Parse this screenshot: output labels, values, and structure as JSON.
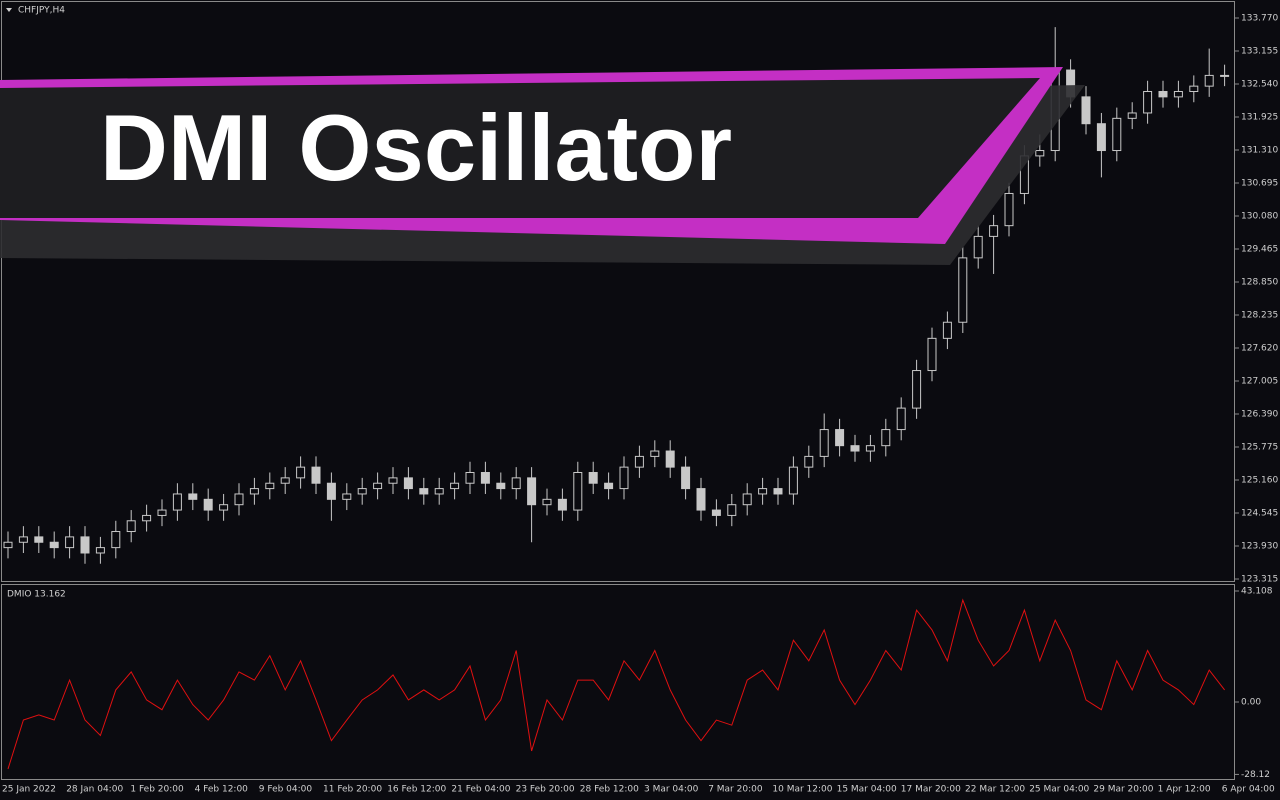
{
  "chart_data": [
    {
      "type": "candlestick",
      "title": "CHFJPY,H4",
      "up_color": "#0b0b10",
      "down_color": "#c8c8c8",
      "wick_color": "#c8c8c8",
      "open": [
        123.9,
        124.0,
        124.1,
        124.0,
        123.9,
        124.1,
        123.8,
        123.9,
        124.2,
        124.4,
        124.5,
        124.6,
        124.9,
        124.8,
        124.6,
        124.7,
        124.9,
        125.0,
        125.1,
        125.2,
        125.4,
        125.1,
        124.8,
        124.9,
        125.0,
        125.1,
        125.2,
        125.0,
        124.9,
        125.0,
        125.1,
        125.3,
        125.1,
        125.0,
        125.2,
        124.7,
        124.8,
        124.6,
        125.3,
        125.1,
        125.0,
        125.4,
        125.6,
        125.7,
        125.4,
        125.0,
        124.6,
        124.5,
        124.7,
        124.9,
        125.0,
        124.9,
        125.4,
        125.6,
        126.1,
        125.8,
        125.7,
        125.8,
        126.1,
        126.5,
        127.2,
        127.8,
        128.1,
        129.3,
        129.7,
        129.9,
        130.5,
        131.2,
        131.3,
        132.8,
        132.3,
        131.8,
        131.3,
        131.9,
        132.0,
        132.4,
        132.3,
        132.4,
        132.5,
        132.7
      ],
      "high": [
        124.2,
        124.3,
        124.3,
        124.2,
        124.3,
        124.3,
        124.1,
        124.4,
        124.6,
        124.7,
        124.8,
        125.1,
        125.1,
        125.0,
        124.9,
        125.1,
        125.2,
        125.3,
        125.4,
        125.6,
        125.6,
        125.3,
        125.1,
        125.2,
        125.3,
        125.4,
        125.4,
        125.2,
        125.2,
        125.3,
        125.5,
        125.5,
        125.3,
        125.4,
        125.4,
        125.0,
        125.0,
        125.5,
        125.5,
        125.3,
        125.6,
        125.8,
        125.9,
        125.9,
        125.6,
        125.2,
        124.8,
        124.9,
        125.1,
        125.2,
        125.2,
        125.6,
        125.8,
        126.4,
        126.3,
        126.0,
        126.0,
        126.3,
        126.7,
        127.4,
        128.0,
        128.3,
        129.5,
        129.9,
        130.1,
        130.7,
        131.4,
        131.6,
        133.6,
        133.0,
        132.5,
        132.0,
        132.1,
        132.2,
        132.6,
        132.6,
        132.6,
        132.7,
        133.2,
        132.9
      ],
      "low": [
        123.7,
        123.8,
        123.8,
        123.7,
        123.7,
        123.6,
        123.6,
        123.7,
        124.0,
        124.2,
        124.3,
        124.4,
        124.6,
        124.4,
        124.4,
        124.5,
        124.7,
        124.8,
        124.9,
        125.0,
        124.9,
        124.4,
        124.6,
        124.7,
        124.8,
        124.9,
        124.8,
        124.7,
        124.7,
        124.8,
        124.9,
        124.9,
        124.8,
        124.8,
        124.0,
        124.5,
        124.4,
        124.4,
        124.9,
        124.8,
        124.8,
        125.2,
        125.4,
        125.2,
        124.8,
        124.4,
        124.3,
        124.3,
        124.5,
        124.7,
        124.7,
        124.7,
        125.2,
        125.4,
        125.6,
        125.5,
        125.5,
        125.6,
        125.9,
        126.3,
        127.0,
        127.6,
        127.9,
        129.1,
        129.0,
        129.7,
        130.3,
        131.0,
        131.1,
        132.1,
        131.6,
        130.8,
        131.1,
        131.7,
        131.8,
        132.1,
        132.1,
        132.2,
        132.3,
        132.5
      ],
      "close": [
        124.0,
        124.1,
        124.0,
        123.9,
        124.1,
        123.8,
        123.9,
        124.2,
        124.4,
        124.5,
        124.6,
        124.9,
        124.8,
        124.6,
        124.7,
        124.9,
        125.0,
        125.1,
        125.2,
        125.4,
        125.1,
        124.8,
        124.9,
        125.0,
        125.1,
        125.2,
        125.0,
        124.9,
        125.0,
        125.1,
        125.3,
        125.1,
        125.0,
        125.2,
        124.7,
        124.8,
        124.6,
        125.3,
        125.1,
        125.0,
        125.4,
        125.6,
        125.7,
        125.4,
        125.0,
        124.6,
        124.5,
        124.7,
        124.9,
        125.0,
        124.9,
        125.4,
        125.6,
        126.1,
        125.8,
        125.7,
        125.8,
        126.1,
        126.5,
        127.2,
        127.8,
        128.1,
        129.3,
        129.7,
        129.9,
        130.5,
        131.2,
        131.3,
        132.8,
        132.3,
        131.8,
        131.3,
        131.9,
        132.0,
        132.4,
        132.3,
        132.4,
        132.5,
        132.7,
        132.7
      ],
      "ylim": [
        123.278,
        134.068
      ],
      "yticks": [
        {
          "value": 133.77,
          "label": "133.770"
        },
        133.155,
        {
          "value": 132.54,
          "label": "132.540"
        },
        131.925,
        {
          "value": 131.31,
          "label": "131.310"
        },
        130.695,
        {
          "value": 130.08,
          "label": "130.080"
        },
        129.465,
        {
          "value": 128.85,
          "label": "128.850"
        },
        128.235,
        {
          "value": 127.62,
          "label": "127.620"
        },
        127.005,
        {
          "value": 126.39,
          "label": "126.390"
        },
        125.775,
        {
          "value": 125.16,
          "label": "125.160"
        },
        124.545,
        {
          "value": 123.93,
          "label": "123.930"
        },
        123.315
      ],
      "banner": "DMI Oscillator"
    },
    {
      "type": "line",
      "title": "DMIO 13.162",
      "color": "#e01010",
      "values": [
        -26,
        -7,
        -5,
        -7,
        8.5,
        -7,
        -13,
        4.7,
        11.7,
        0.8,
        -3,
        8.5,
        -1,
        -7,
        0.8,
        11.7,
        8.5,
        18,
        4.7,
        16,
        0.8,
        -15,
        -7,
        0.8,
        4.7,
        10.5,
        0.8,
        4.7,
        0.8,
        4.7,
        14,
        -7,
        0.8,
        20,
        -19,
        0.8,
        -7,
        8.5,
        8.5,
        0.8,
        16,
        8.5,
        20,
        4.7,
        -7,
        -15,
        -7,
        -9,
        8.5,
        12.4,
        4.7,
        24,
        16,
        28,
        8.5,
        -1,
        8.5,
        20,
        12.4,
        35.7,
        28,
        16,
        39.6,
        24,
        14,
        20,
        35.7,
        16,
        31.8,
        20,
        0.8,
        -3,
        16,
        4.7,
        20,
        8.5,
        4.7,
        -1,
        12.4,
        4.7
      ],
      "ylim": [
        -30.29,
        45.44
      ],
      "yticks": [
        43.108,
        {
          "value": 0,
          "label": "0.00"
        },
        {
          "value": -28.12,
          "label": "-28.12"
        }
      ],
      "date_labels": [
        "25 Jan 2022",
        "28 Jan 04:00",
        "1 Feb 20:00",
        "4 Feb 12:00",
        "9 Feb 04:00",
        "11 Feb 20:00",
        "16 Feb 12:00",
        "21 Feb 04:00",
        "23 Feb 20:00",
        "28 Feb 12:00",
        "3 Mar 04:00",
        "7 Mar 20:00",
        "10 Mar 12:00",
        "15 Mar 04:00",
        "17 Mar 20:00",
        "22 Mar 12:00",
        "25 Mar 04:00",
        "29 Mar 20:00",
        "1 Apr 12:00",
        "6 Apr 04:00"
      ]
    }
  ]
}
